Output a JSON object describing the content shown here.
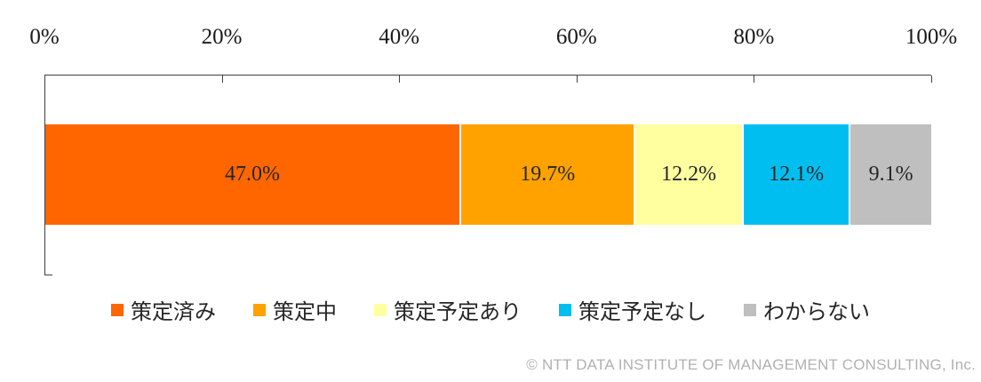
{
  "chart_data": {
    "type": "bar",
    "variant": "horizontal-stacked",
    "title": "",
    "x_axis": {
      "position": "top",
      "range": [
        0,
        100
      ],
      "ticks": [
        "0%",
        "20%",
        "40%",
        "60%",
        "80%",
        "100%"
      ],
      "tick_values": [
        0,
        20,
        40,
        60,
        80,
        100
      ],
      "grid": false
    },
    "categories": [
      "策定済み",
      "策定中",
      "策定予定あり",
      "策定予定なし",
      "わからない"
    ],
    "values": [
      47.0,
      19.7,
      12.2,
      12.1,
      9.1
    ],
    "data_labels": [
      "47.0%",
      "19.7%",
      "12.2%",
      "12.1%",
      "9.1%"
    ],
    "colors": [
      "#FF6600",
      "#FFA200",
      "#FFFFA0",
      "#00BFF0",
      "#BFBFBF"
    ],
    "label_color": "#262626",
    "axis_color": "#404040",
    "legend": {
      "position": "bottom"
    }
  },
  "footer": {
    "copyright": "© NTT DATA INSTITUTE OF MANAGEMENT CONSULTING, Inc."
  }
}
